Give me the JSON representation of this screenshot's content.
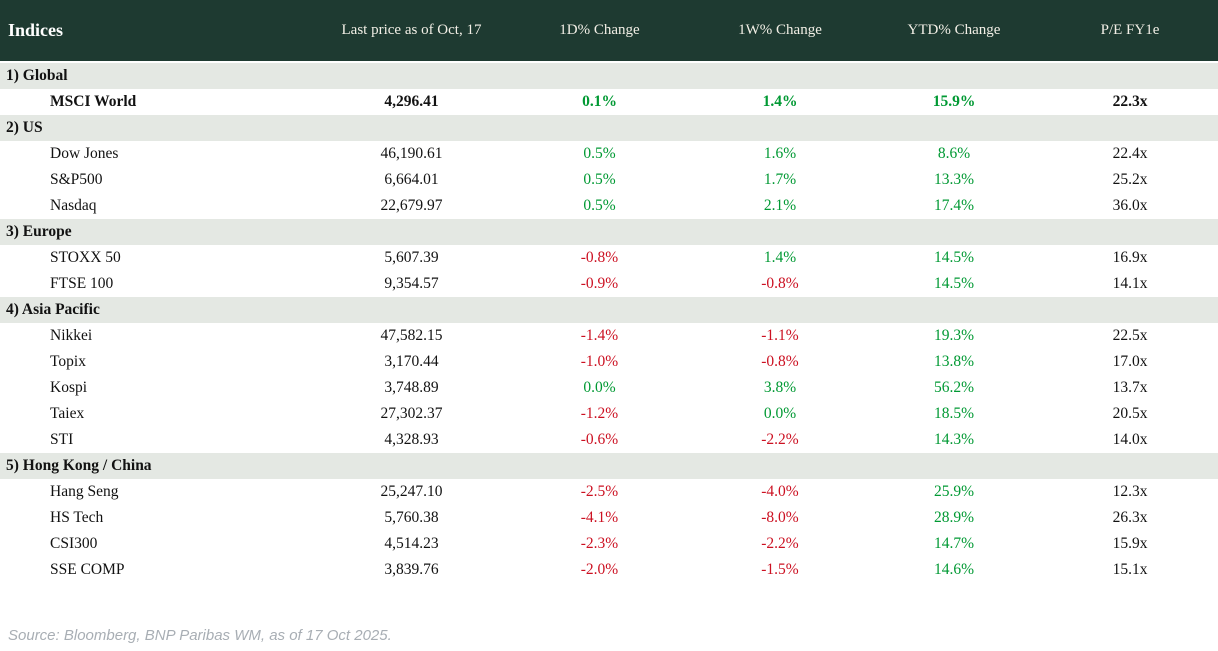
{
  "chart_data": {
    "type": "table",
    "title": "Indices",
    "columns": [
      "Last price as of Oct, 17",
      "1D% Change",
      "1W% Change",
      "YTD% Change",
      "P/E FY1e"
    ],
    "sections": [
      {
        "label": "1) Global",
        "rows": [
          {
            "name": "MSCI World",
            "price": "4,296.41",
            "d1": "0.1%",
            "w1": "1.4%",
            "ytd": "15.9%",
            "pe": "22.3x",
            "bold": true
          }
        ]
      },
      {
        "label": "2) US",
        "rows": [
          {
            "name": "Dow Jones",
            "price": "46,190.61",
            "d1": "0.5%",
            "w1": "1.6%",
            "ytd": "8.6%",
            "pe": "22.4x"
          },
          {
            "name": "S&P500",
            "price": "6,664.01",
            "d1": "0.5%",
            "w1": "1.7%",
            "ytd": "13.3%",
            "pe": "25.2x"
          },
          {
            "name": "Nasdaq",
            "price": "22,679.97",
            "d1": "0.5%",
            "w1": "2.1%",
            "ytd": "17.4%",
            "pe": "36.0x"
          }
        ]
      },
      {
        "label": "3) Europe",
        "rows": [
          {
            "name": "STOXX 50",
            "price": "5,607.39",
            "d1": "-0.8%",
            "w1": "1.4%",
            "ytd": "14.5%",
            "pe": "16.9x"
          },
          {
            "name": "FTSE 100",
            "price": "9,354.57",
            "d1": "-0.9%",
            "w1": "-0.8%",
            "ytd": "14.5%",
            "pe": "14.1x"
          }
        ]
      },
      {
        "label": "4) Asia Pacific",
        "rows": [
          {
            "name": "Nikkei",
            "price": "47,582.15",
            "d1": "-1.4%",
            "w1": "-1.1%",
            "ytd": "19.3%",
            "pe": "22.5x"
          },
          {
            "name": "Topix",
            "price": "3,170.44",
            "d1": "-1.0%",
            "w1": "-0.8%",
            "ytd": "13.8%",
            "pe": "17.0x"
          },
          {
            "name": "Kospi",
            "price": "3,748.89",
            "d1": "0.0%",
            "w1": "3.8%",
            "ytd": "56.2%",
            "pe": "13.7x"
          },
          {
            "name": "Taiex",
            "price": "27,302.37",
            "d1": "-1.2%",
            "w1": "0.0%",
            "ytd": "18.5%",
            "pe": "20.5x"
          },
          {
            "name": "STI",
            "price": "4,328.93",
            "d1": "-0.6%",
            "w1": "-2.2%",
            "ytd": "14.3%",
            "pe": "14.0x"
          }
        ]
      },
      {
        "label": "5) Hong Kong / China",
        "rows": [
          {
            "name": "Hang Seng",
            "price": "25,247.10",
            "d1": "-2.5%",
            "w1": "-4.0%",
            "ytd": "25.9%",
            "pe": "12.3x"
          },
          {
            "name": "HS Tech",
            "price": "5,760.38",
            "d1": "-4.1%",
            "w1": "-8.0%",
            "ytd": "28.9%",
            "pe": "26.3x"
          },
          {
            "name": "CSI300",
            "price": "4,514.23",
            "d1": "-2.3%",
            "w1": "-2.2%",
            "ytd": "14.7%",
            "pe": "15.9x"
          },
          {
            "name": "SSE COMP",
            "price": "3,839.76",
            "d1": "-2.0%",
            "w1": "-1.5%",
            "ytd": "14.6%",
            "pe": "15.1x"
          }
        ]
      }
    ]
  },
  "footer": {
    "source_note": "Source: Bloomberg, BNP Paribas WM, as of 17 Oct 2025."
  },
  "colors": {
    "header_bg": "#1e3a31",
    "section_bg": "#e4e8e3",
    "positive": "#009933",
    "negative": "#cc1122"
  }
}
